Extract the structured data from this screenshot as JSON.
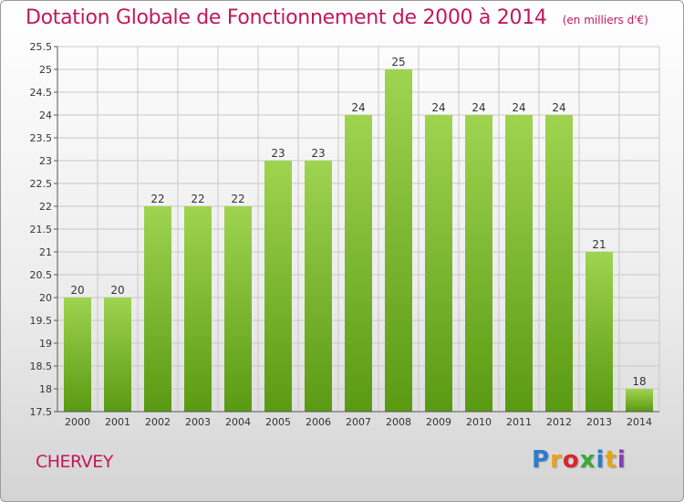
{
  "title": "Dotation Globale de Fonctionnement de 2000 à 2014",
  "subtitle": "(en milliers d'€)",
  "commune": "CHERVEY",
  "logo": {
    "text": "Proxiti",
    "colors": [
      "#2e7bd1",
      "#e8a317",
      "#d8262c",
      "#3aa83a",
      "#2e7bd1",
      "#e8a317",
      "#8a3ab9"
    ]
  },
  "colors": {
    "title": "#c2185b",
    "bar_top": "#9fd450",
    "bar_bottom": "#5a9a12",
    "grid": "#c8c8c8"
  },
  "chart_data": {
    "type": "bar",
    "title": "Dotation Globale de Fonctionnement de 2000 à 2014",
    "subtitle": "(en milliers d'€)",
    "categories": [
      "2000",
      "2001",
      "2002",
      "2003",
      "2004",
      "2005",
      "2006",
      "2007",
      "2008",
      "2009",
      "2010",
      "2011",
      "2012",
      "2013",
      "2014"
    ],
    "values": [
      20,
      20,
      22,
      22,
      22,
      23,
      23,
      24,
      25,
      24,
      24,
      24,
      24,
      21,
      18
    ],
    "labels": [
      "20",
      "20",
      "22",
      "22",
      "22",
      "23",
      "23",
      "24",
      "25",
      "24",
      "24",
      "24",
      "24",
      "21",
      "18"
    ],
    "ylim": [
      17.5,
      25.5
    ],
    "yticks": [
      "17.5",
      "18",
      "18.5",
      "19",
      "19.5",
      "20",
      "20.5",
      "21",
      "21.5",
      "22",
      "22.5",
      "23",
      "23.5",
      "24",
      "24.5",
      "25",
      "25.5"
    ],
    "grid": true,
    "legend": "none"
  }
}
